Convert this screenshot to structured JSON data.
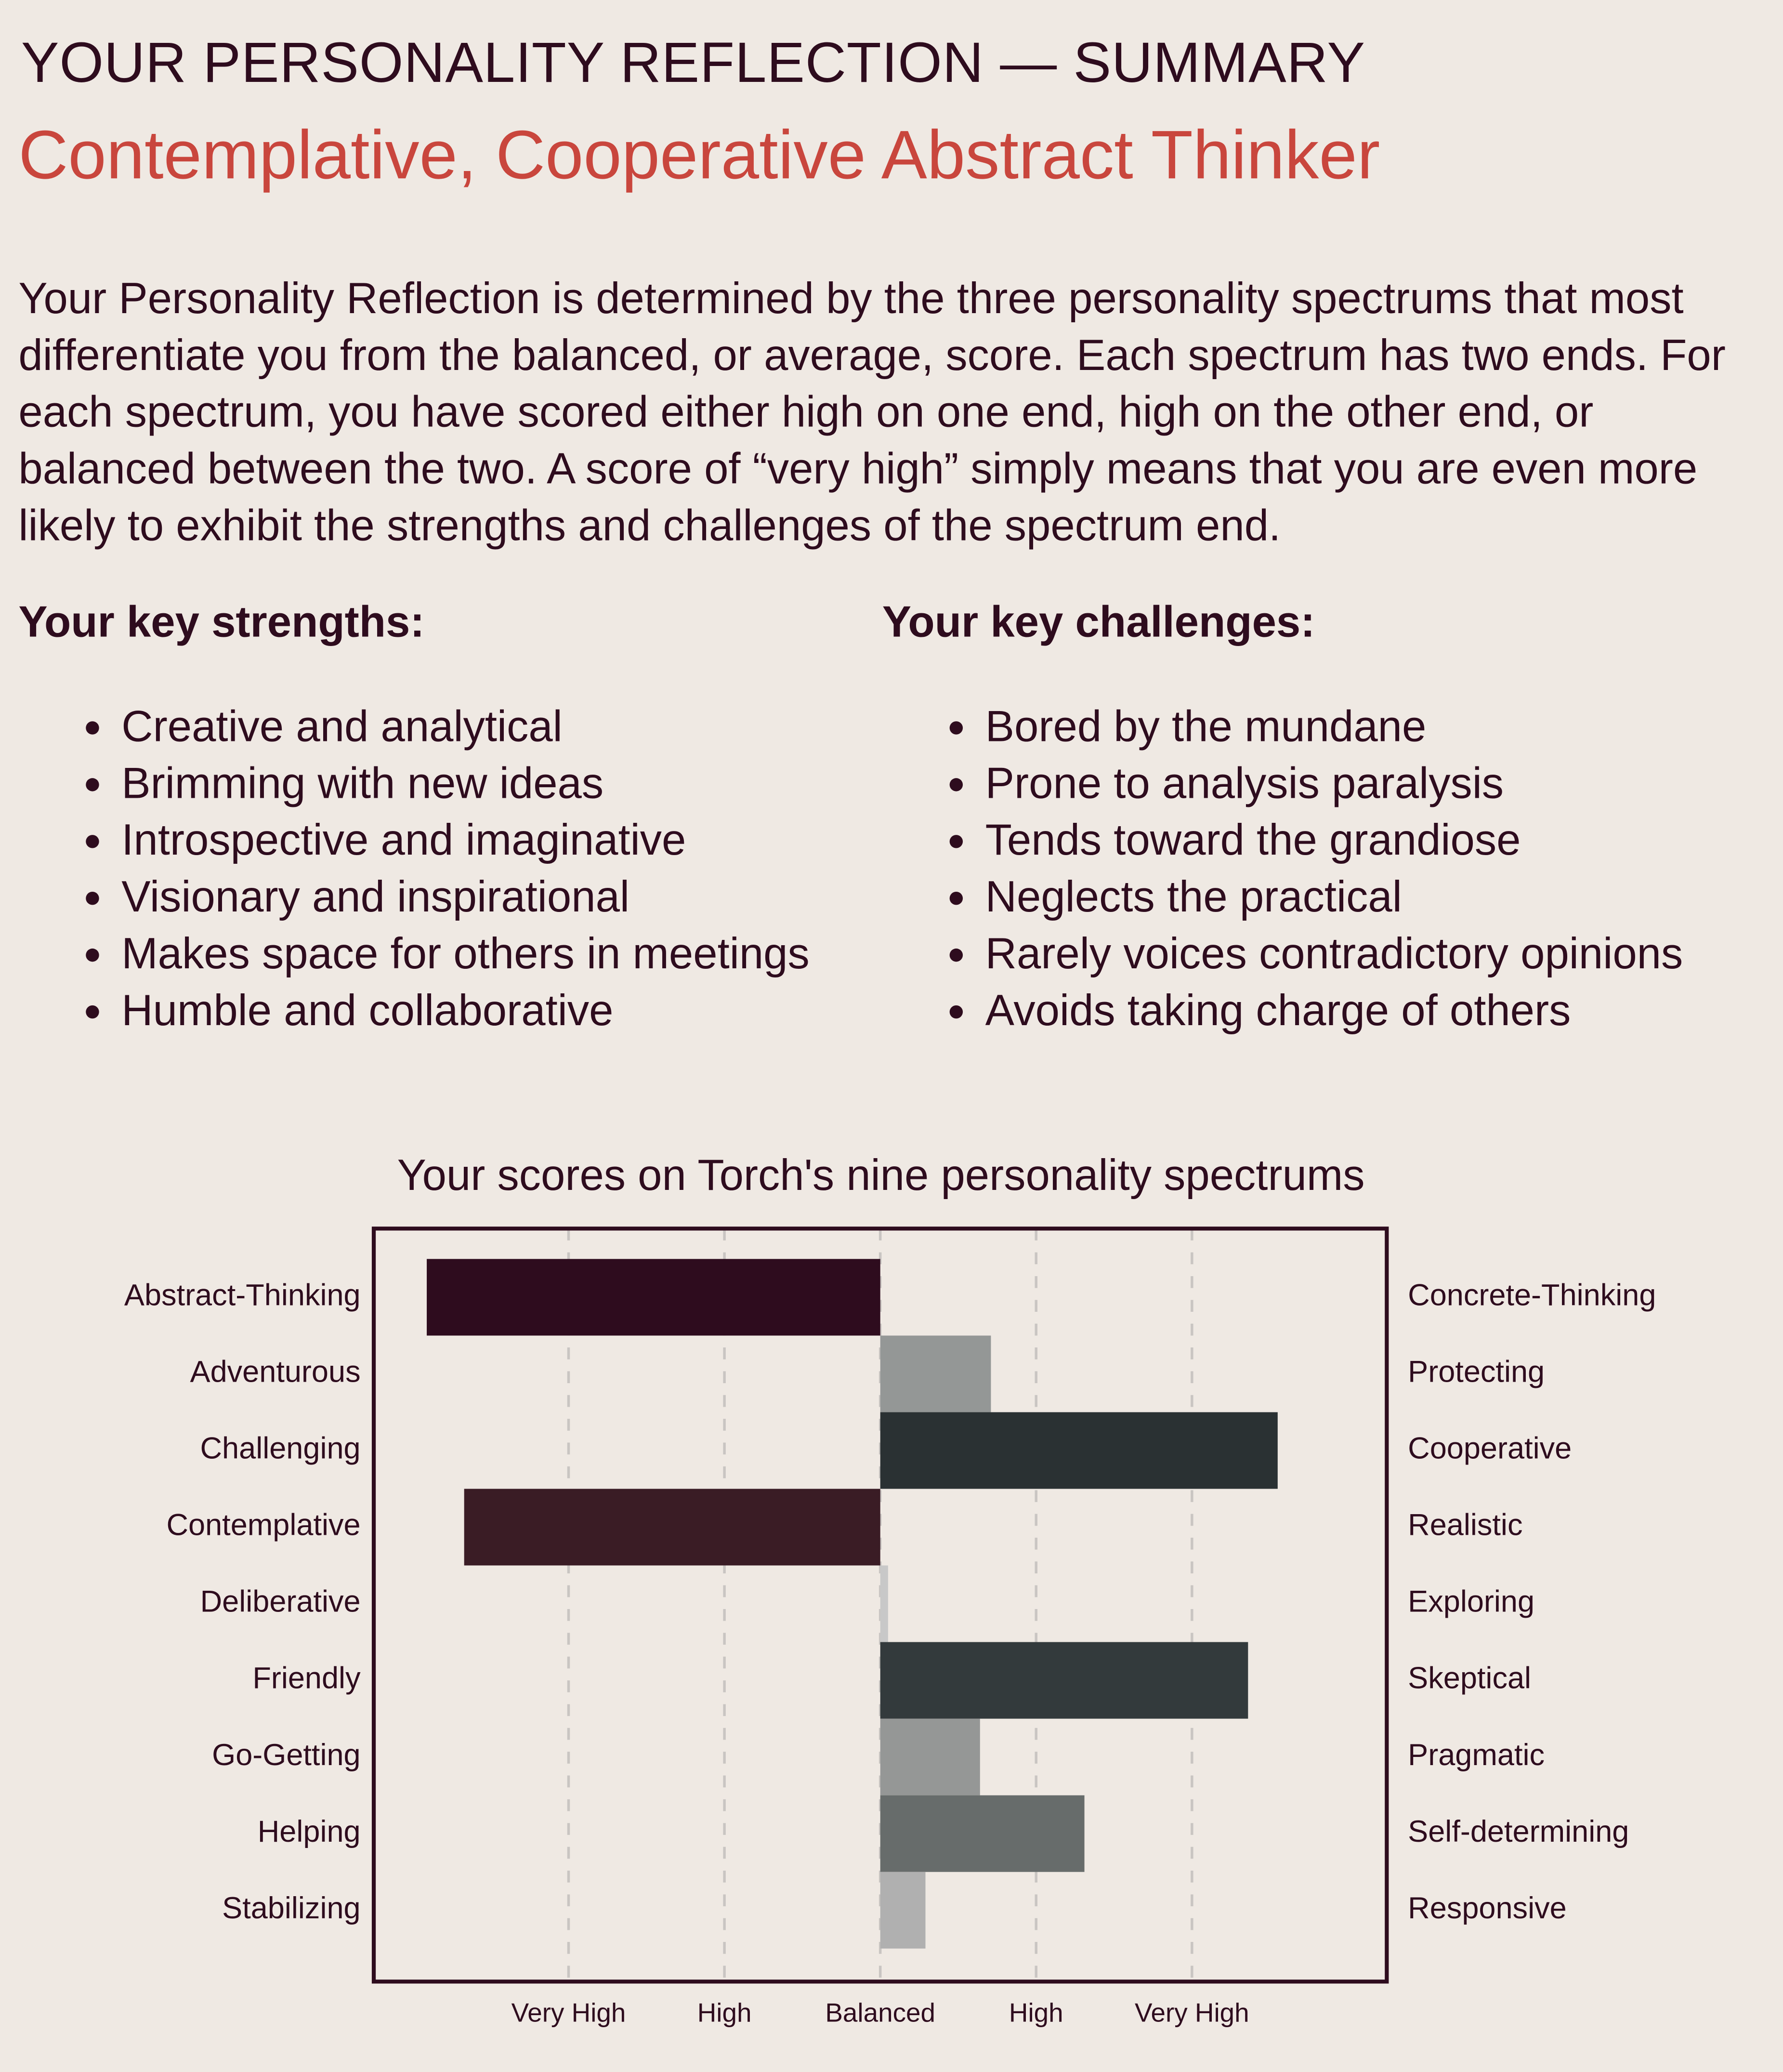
{
  "header": {
    "title": "YOUR PERSONALITY REFLECTION — SUMMARY",
    "subtitle": "Contemplative, Cooperative Abstract Thinker"
  },
  "intro": "Your Personality Reflection is determined by the three personality spectrums that most differentiate you from the balanced, or average, score. Each spectrum has two ends. For each spectrum, you have scored either high on one end, high on the other end, or balanced between the two. A score of “very high” simply means that you are even more likely to exhibit the strengths and challenges of the spectrum end.",
  "strengths": {
    "heading": "Your key strengths:",
    "items": [
      "Creative and analytical",
      "Brimming with new ideas",
      "Introspective and imaginative",
      "Visionary and inspirational",
      "Makes space for others in meetings",
      "Humble and collaborative"
    ]
  },
  "challenges": {
    "heading": "Your key challenges:",
    "items": [
      "Bored by the mundane",
      "Prone to analysis paralysis",
      "Tends toward the grandiose",
      "Neglects the practical",
      "Rarely voices contradictory opinions",
      "Avoids taking charge of others"
    ]
  },
  "chart_data": {
    "type": "diverging-bar",
    "title": "Your scores on Torch's nine personality spectrums",
    "categories": [
      "Abstract-Thinking",
      "Adventurous",
      "Challenging",
      "Contemplative",
      "Deliberative",
      "Friendly",
      "Go-Getting",
      "Helping",
      "Stabilizing"
    ],
    "right_labels": [
      "Concrete-Thinking",
      "Protecting",
      "Cooperative",
      "Realistic",
      "Exploring",
      "Skeptical",
      "Pragmatic",
      "Self-determining",
      "Responsive"
    ],
    "values": [
      -2.91,
      0.71,
      2.55,
      -2.67,
      0.05,
      2.36,
      0.64,
      1.31,
      0.29
    ],
    "colors": [
      "#2e0c1e",
      "#949796",
      "#2a3133",
      "#3a1c25",
      "#c8c8c8",
      "#333a3c",
      "#959796",
      "#676c6b",
      "#b0b0b0"
    ],
    "xlim": [
      -3.25,
      3.25
    ],
    "xticks": [
      {
        "value": -2,
        "label": "Very High"
      },
      {
        "value": -1,
        "label": "High"
      },
      {
        "value": 0,
        "label": "Balanced"
      },
      {
        "value": 1,
        "label": "High"
      },
      {
        "value": 2,
        "label": "Very High"
      }
    ],
    "grid": true
  }
}
